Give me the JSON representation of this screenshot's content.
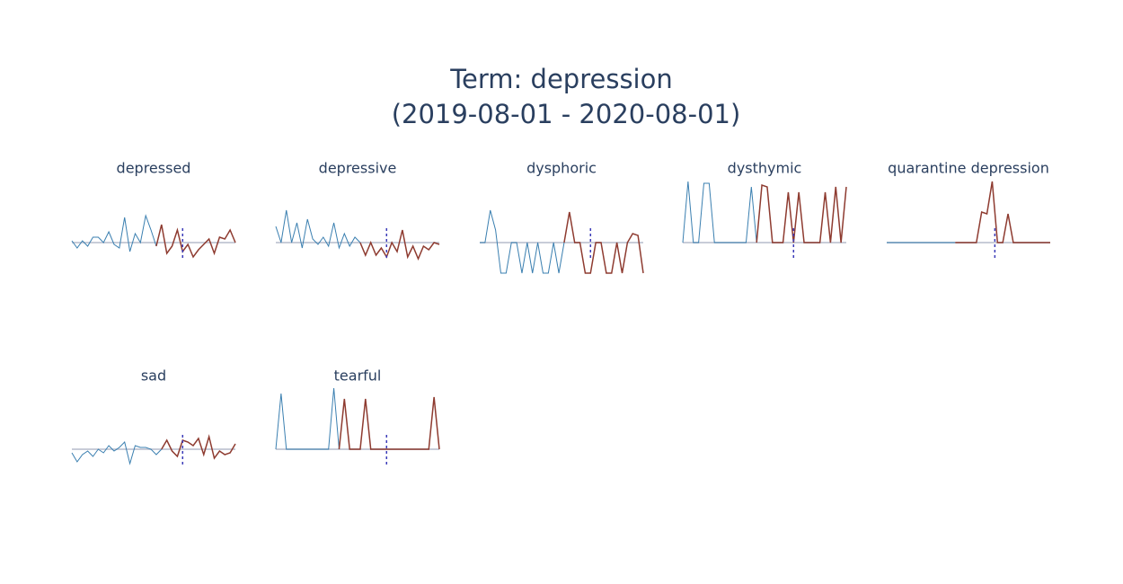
{
  "title": "Term: depression",
  "subtitle": "(2019-08-01 - 2020-08-01)",
  "chart_data": [
    {
      "type": "line",
      "title": "depressed",
      "x": [
        0,
        1,
        2,
        3,
        4,
        5,
        6,
        7,
        8,
        9,
        10,
        11,
        12,
        13,
        14,
        15,
        16,
        17,
        18,
        19,
        20,
        21,
        22,
        23,
        24,
        25,
        26,
        27,
        28,
        29,
        30,
        31
      ],
      "ylim": [
        -40,
        70
      ],
      "zeroline": true,
      "vline_x": 21,
      "series": [
        {
          "color": "#3a7fb0",
          "values": [
            2,
            -6,
            2,
            -4,
            6,
            6,
            0,
            12,
            -2,
            -6,
            28,
            -10,
            10,
            0,
            30,
            14,
            -4,
            null,
            null,
            null,
            null,
            null,
            null,
            null,
            null,
            null,
            null,
            null,
            null,
            null,
            null,
            null
          ]
        },
        {
          "color": "#8e3b30",
          "values": [
            null,
            null,
            null,
            null,
            null,
            null,
            null,
            null,
            null,
            null,
            null,
            null,
            null,
            null,
            null,
            null,
            -4,
            20,
            -12,
            -4,
            14,
            -10,
            -2,
            -16,
            -8,
            -2,
            4,
            -12,
            6,
            4,
            14,
            0
          ]
        }
      ]
    },
    {
      "type": "line",
      "title": "depressive",
      "x": [
        0,
        1,
        2,
        3,
        4,
        5,
        6,
        7,
        8,
        9,
        10,
        11,
        12,
        13,
        14,
        15,
        16,
        17,
        18,
        19,
        20,
        21,
        22,
        23,
        24,
        25,
        26,
        27,
        28,
        29,
        30,
        31
      ],
      "ylim": [
        -40,
        70
      ],
      "zeroline": true,
      "vline_x": 21,
      "series": [
        {
          "color": "#3a7fb0",
          "values": [
            18,
            0,
            36,
            0,
            22,
            -6,
            26,
            4,
            -2,
            6,
            -4,
            22,
            -6,
            10,
            -4,
            6,
            0,
            null,
            null,
            null,
            null,
            null,
            null,
            null,
            null,
            null,
            null,
            null,
            null,
            null,
            null,
            null
          ]
        },
        {
          "color": "#8e3b30",
          "values": [
            null,
            null,
            null,
            null,
            null,
            null,
            null,
            null,
            null,
            null,
            null,
            null,
            null,
            null,
            null,
            null,
            0,
            -14,
            0,
            -14,
            -6,
            -16,
            0,
            -10,
            14,
            -16,
            -4,
            -18,
            -4,
            -8,
            0,
            -2
          ]
        }
      ]
    },
    {
      "type": "line",
      "title": "dysphoric",
      "x": [
        0,
        1,
        2,
        3,
        4,
        5,
        6,
        7,
        8,
        9,
        10,
        11,
        12,
        13,
        14,
        15,
        16,
        17,
        18,
        19,
        20,
        21,
        22,
        23,
        24,
        25,
        26,
        27,
        28,
        29,
        30,
        31
      ],
      "ylim": [
        -40,
        70
      ],
      "zeroline": true,
      "vline_x": 21,
      "series": [
        {
          "color": "#3a7fb0",
          "values": [
            0,
            0,
            36,
            14,
            -34,
            -34,
            0,
            0,
            -34,
            0,
            -34,
            0,
            -34,
            -34,
            0,
            -34,
            0,
            null,
            null,
            null,
            null,
            null,
            null,
            null,
            null,
            null,
            null,
            null,
            null,
            null,
            null,
            null
          ]
        },
        {
          "color": "#8e3b30",
          "values": [
            null,
            null,
            null,
            null,
            null,
            null,
            null,
            null,
            null,
            null,
            null,
            null,
            null,
            null,
            null,
            null,
            0,
            34,
            0,
            0,
            -34,
            -34,
            0,
            0,
            -34,
            -34,
            0,
            -34,
            0,
            10,
            8,
            -34
          ]
        }
      ]
    },
    {
      "type": "line",
      "title": "dysthymic",
      "x": [
        0,
        1,
        2,
        3,
        4,
        5,
        6,
        7,
        8,
        9,
        10,
        11,
        12,
        13,
        14,
        15,
        16,
        17,
        18,
        19,
        20,
        21,
        22,
        23,
        24,
        25,
        26,
        27,
        28,
        29,
        30,
        31
      ],
      "ylim": [
        -40,
        70
      ],
      "zeroline": true,
      "vline_x": 21,
      "series": [
        {
          "color": "#3a7fb0",
          "values": [
            0,
            68,
            0,
            0,
            66,
            66,
            0,
            0,
            0,
            0,
            0,
            0,
            0,
            62,
            0,
            null,
            null,
            null,
            null,
            null,
            null,
            null,
            null,
            null,
            null,
            null,
            null,
            null,
            null,
            null,
            null,
            null
          ]
        },
        {
          "color": "#8e3b30",
          "values": [
            null,
            null,
            null,
            null,
            null,
            null,
            null,
            null,
            null,
            null,
            null,
            null,
            null,
            null,
            0,
            64,
            62,
            0,
            0,
            0,
            56,
            0,
            56,
            0,
            0,
            0,
            0,
            56,
            0,
            62,
            0,
            62
          ]
        }
      ]
    },
    {
      "type": "line",
      "title": "quarantine depression",
      "x": [
        0,
        1,
        2,
        3,
        4,
        5,
        6,
        7,
        8,
        9,
        10,
        11,
        12,
        13,
        14,
        15,
        16,
        17,
        18,
        19,
        20,
        21,
        22,
        23,
        24,
        25,
        26,
        27,
        28,
        29,
        30,
        31
      ],
      "ylim": [
        -40,
        70
      ],
      "zeroline": true,
      "vline_x": 20.5,
      "series": [
        {
          "color": "#3a7fb0",
          "values": [
            0,
            0,
            0,
            0,
            0,
            0,
            0,
            0,
            0,
            0,
            0,
            0,
            0,
            0,
            null,
            null,
            null,
            null,
            null,
            null,
            null,
            null,
            null,
            null,
            null,
            null,
            null,
            null,
            null,
            null,
            null,
            null
          ]
        },
        {
          "color": "#8e3b30",
          "values": [
            null,
            null,
            null,
            null,
            null,
            null,
            null,
            null,
            null,
            null,
            null,
            null,
            null,
            0,
            0,
            0,
            0,
            0,
            34,
            32,
            68,
            0,
            0,
            32,
            0,
            0,
            0,
            0,
            0,
            0,
            0,
            0
          ]
        }
      ]
    },
    {
      "type": "line",
      "title": "sad",
      "x": [
        0,
        1,
        2,
        3,
        4,
        5,
        6,
        7,
        8,
        9,
        10,
        11,
        12,
        13,
        14,
        15,
        16,
        17,
        18,
        19,
        20,
        21,
        22,
        23,
        24,
        25,
        26,
        27,
        28,
        29,
        30,
        31
      ],
      "ylim": [
        -40,
        70
      ],
      "zeroline": true,
      "vline_x": 21,
      "series": [
        {
          "color": "#3a7fb0",
          "values": [
            -4,
            -14,
            -6,
            -2,
            -8,
            0,
            -4,
            4,
            -2,
            2,
            8,
            -16,
            4,
            2,
            2,
            0,
            -6,
            0,
            null,
            null,
            null,
            null,
            null,
            null,
            null,
            null,
            null,
            null,
            null,
            null,
            null,
            null
          ]
        },
        {
          "color": "#8e3b30",
          "values": [
            null,
            null,
            null,
            null,
            null,
            null,
            null,
            null,
            null,
            null,
            null,
            null,
            null,
            null,
            null,
            null,
            null,
            0,
            10,
            -2,
            -8,
            10,
            8,
            4,
            12,
            -6,
            14,
            -10,
            -2,
            -6,
            -4,
            6
          ]
        }
      ]
    },
    {
      "type": "line",
      "title": "tearful",
      "x": [
        0,
        1,
        2,
        3,
        4,
        5,
        6,
        7,
        8,
        9,
        10,
        11,
        12,
        13,
        14,
        15,
        16,
        17,
        18,
        19,
        20,
        21,
        22,
        23,
        24,
        25,
        26,
        27,
        28,
        29,
        30,
        31
      ],
      "ylim": [
        -40,
        70
      ],
      "zeroline": true,
      "vline_x": 21,
      "series": [
        {
          "color": "#3a7fb0",
          "values": [
            0,
            62,
            0,
            0,
            0,
            0,
            0,
            0,
            0,
            0,
            0,
            68,
            0,
            null,
            null,
            null,
            null,
            null,
            null,
            null,
            null,
            null,
            null,
            null,
            null,
            null,
            null,
            null,
            null,
            null,
            null,
            null
          ]
        },
        {
          "color": "#8e3b30",
          "values": [
            null,
            null,
            null,
            null,
            null,
            null,
            null,
            null,
            null,
            null,
            null,
            null,
            0,
            56,
            0,
            0,
            0,
            56,
            0,
            0,
            0,
            0,
            0,
            0,
            0,
            0,
            0,
            0,
            0,
            0,
            58,
            0
          ]
        }
      ]
    }
  ]
}
